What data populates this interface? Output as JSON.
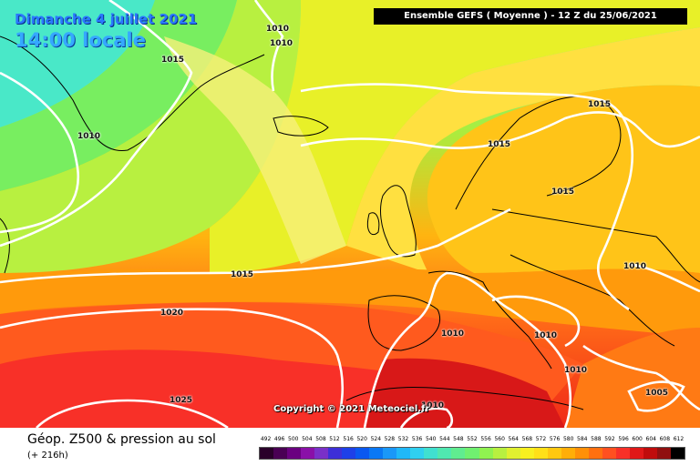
{
  "header": {
    "date": "Dimanche 4 juillet 2021",
    "local_time": "14:00 locale",
    "run_info": "Ensemble GEFS ( Moyenne ) - 12 Z du 25/06/2021"
  },
  "map": {
    "copyright": "Copyright © 2021 Meteociel.fr",
    "isobar_labels": [
      "1010",
      "1010",
      "1015",
      "1010",
      "1015",
      "1015",
      "1015",
      "1020",
      "1015",
      "1010",
      "1010",
      "1025",
      "1010",
      "1005",
      "1010",
      "1010"
    ],
    "colors": {
      "isobar": "#ffffff",
      "coast": "#000000"
    }
  },
  "footer": {
    "title": "Géop. Z500 & pression au sol",
    "lead_time": "(+ 216h)"
  },
  "scale": {
    "values": [
      "492",
      "496",
      "500",
      "504",
      "508",
      "512",
      "516",
      "520",
      "524",
      "528",
      "532",
      "536",
      "540",
      "544",
      "548",
      "552",
      "556",
      "560",
      "564",
      "568",
      "572",
      "576",
      "580",
      "584",
      "588",
      "592",
      "596",
      "600",
      "604",
      "608",
      "612"
    ],
    "colors": [
      "#2a002a",
      "#4a0054",
      "#6a0080",
      "#8a10a8",
      "#7a30c8",
      "#3d2fd8",
      "#1e40e8",
      "#0a58f0",
      "#0a78f5",
      "#1a98f8",
      "#20b8f8",
      "#30d0f0",
      "#40e0d0",
      "#50e8b0",
      "#60ec90",
      "#70f070",
      "#90f250",
      "#b8f040",
      "#e0f030",
      "#f8f020",
      "#ffe018",
      "#ffc810",
      "#ffae08",
      "#ff9008",
      "#ff7010",
      "#ff5020",
      "#f83028",
      "#e01818",
      "#c00c0c",
      "#901010",
      "#000000"
    ]
  }
}
